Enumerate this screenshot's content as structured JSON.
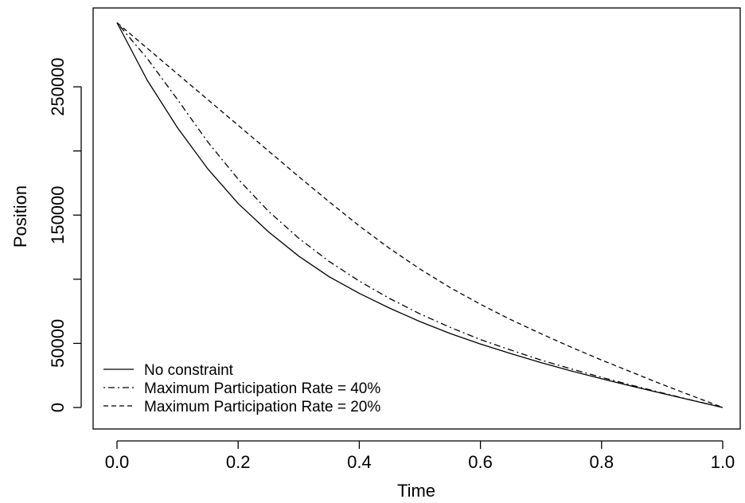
{
  "chart_data": {
    "type": "line",
    "title": "",
    "xlabel": "Time",
    "ylabel": "Position",
    "xlim": [
      0,
      1
    ],
    "ylim": [
      -3000,
      306000
    ],
    "x_ticks": [
      0,
      0.2,
      0.4,
      0.6,
      0.8,
      1.0
    ],
    "x_tick_labels": [
      "0.0",
      "0.2",
      "0.4",
      "0.6",
      "0.8",
      "1.0"
    ],
    "y_ticks": [
      0,
      50000,
      100000,
      150000,
      200000,
      250000
    ],
    "y_tick_labels": [
      "0",
      "50000",
      "",
      "150000",
      "",
      "250000"
    ],
    "grid": false,
    "legend_position": "bottom-left",
    "x": [
      0,
      0.05,
      0.1,
      0.15,
      0.2,
      0.25,
      0.3,
      0.35,
      0.4,
      0.45,
      0.5,
      0.55,
      0.6,
      0.65,
      0.7,
      0.75,
      0.8,
      0.85,
      0.9,
      0.95,
      1.0
    ],
    "series": [
      {
        "name": "No constraint",
        "dash": "solid",
        "values": [
          300000,
          255000,
          218000,
          186000,
          159000,
          137000,
          118000,
          102000,
          89000,
          77500,
          67000,
          57700,
          49500,
          42000,
          35000,
          28500,
          22400,
          16600,
          11000,
          5500,
          0
        ]
      },
      {
        "name": "Maximum Participation Rate = 40%",
        "dash": "dotdash",
        "values": [
          300000,
          272000,
          240000,
          207000,
          178000,
          153000,
          132000,
          114000,
          98500,
          85000,
          73000,
          62500,
          53000,
          44800,
          37000,
          30000,
          23500,
          17300,
          11400,
          5600,
          0
        ]
      },
      {
        "name": "Maximum Participation Rate = 20%",
        "dash": "dashed",
        "values": [
          300000,
          280000,
          260000,
          240000,
          220000,
          200000,
          180000,
          160500,
          141500,
          124000,
          108000,
          93500,
          80500,
          68500,
          57500,
          47000,
          37000,
          27500,
          18000,
          9000,
          0
        ]
      }
    ]
  }
}
